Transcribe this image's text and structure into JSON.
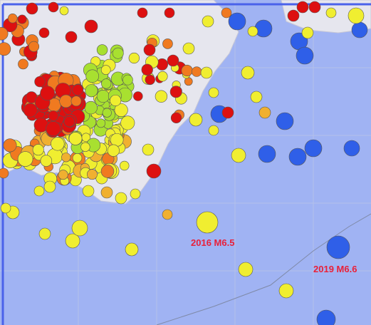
{
  "map": {
    "labels": [
      "2016 M6.5",
      "2019 M6.6"
    ]
  }
}
